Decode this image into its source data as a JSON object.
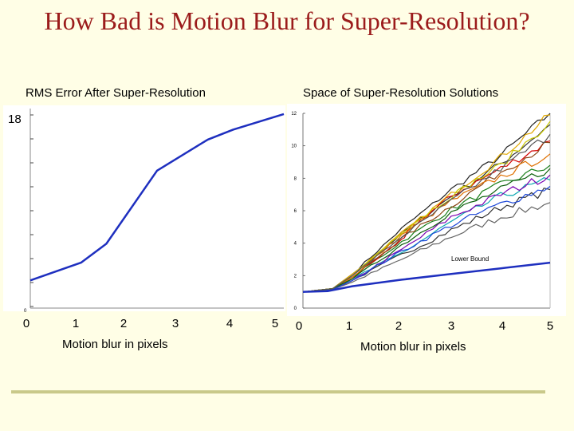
{
  "slide": {
    "title": "How Bad is Motion Blur for Super-Resolution?"
  },
  "chart_data": [
    {
      "type": "line",
      "title": "RMS Error After Super-Resolution",
      "xlabel": "Motion blur in pixels",
      "ylabel": "",
      "xlim": [
        0,
        5
      ],
      "ylim": [
        0,
        18
      ],
      "x_ticks": [
        "0",
        "1",
        "2",
        "3",
        "4",
        "5"
      ],
      "y_tick_label": "18",
      "y_small_tick_label": "0",
      "series": [
        {
          "color": "#1e2fbf",
          "x": [
            0,
            1,
            1.5,
            2.5,
            3.5,
            4,
            5
          ],
          "y": [
            2.5,
            4.1,
            5.8,
            12.4,
            15.2,
            16.1,
            17.5
          ]
        }
      ],
      "grid": false
    },
    {
      "type": "line",
      "title": "Space of Super-Resolution Solutions",
      "xlabel": "Motion blur in pixels",
      "ylabel": "",
      "xlim": [
        0,
        5
      ],
      "ylim": [
        0,
        12
      ],
      "x_ticks": [
        "0",
        "1",
        "2",
        "3",
        "4",
        "5"
      ],
      "y_ticks": [
        "0",
        "2",
        "4",
        "6",
        "8",
        "10",
        "12"
      ],
      "annotation": "Lower Bound",
      "lower_bound": {
        "color": "#1e2fbf",
        "x": [
          0,
          0.5,
          1,
          2,
          3,
          4,
          5
        ],
        "y": [
          1,
          1.05,
          1.35,
          1.75,
          2.1,
          2.45,
          2.8
        ]
      },
      "solution_colors": [
        "#222222",
        "#333333",
        "#666666",
        "#1a7f1a",
        "#d40000",
        "#e0a800",
        "#8b4513",
        "#0aa6b0",
        "#7a00b0",
        "#1d48d8",
        "#e07000",
        "#0b5e0b",
        "#c8c800",
        "#555555"
      ],
      "solution_curves": [
        {
          "color": "#222222",
          "x": [
            0,
            0.6,
            1,
            2,
            3,
            4,
            5
          ],
          "y": [
            1,
            1.2,
            2.1,
            4.9,
            7.3,
            9.4,
            12.0
          ]
        },
        {
          "color": "#333333",
          "x": [
            0,
            0.6,
            1,
            2,
            3,
            4,
            5
          ],
          "y": [
            1,
            1.2,
            2.0,
            4.6,
            6.9,
            8.9,
            11.3
          ]
        },
        {
          "color": "#666666",
          "x": [
            0,
            0.6,
            1,
            2,
            3,
            4,
            5
          ],
          "y": [
            1,
            1.15,
            1.6,
            3.0,
            4.4,
            5.6,
            6.5
          ]
        },
        {
          "color": "#333333",
          "x": [
            0,
            0.6,
            1,
            2,
            3,
            4,
            5
          ],
          "y": [
            1,
            1.15,
            1.7,
            3.3,
            4.8,
            6.2,
            7.3
          ]
        },
        {
          "color": "#1a7f1a",
          "x": [
            0,
            0.6,
            1,
            2,
            3,
            4,
            5
          ],
          "y": [
            1,
            1.2,
            1.9,
            4.1,
            6.1,
            7.6,
            8.8
          ]
        },
        {
          "color": "#d40000",
          "x": [
            0,
            0.6,
            1,
            2,
            2.2,
            3,
            4,
            5
          ],
          "y": [
            1,
            1.2,
            1.9,
            4.2,
            5.0,
            6.9,
            8.6,
            10.3
          ]
        },
        {
          "color": "#e0a800",
          "x": [
            0,
            0.6,
            1,
            2,
            3,
            4,
            5
          ],
          "y": [
            1,
            1.2,
            2.1,
            4.6,
            7.0,
            9.3,
            11.9
          ]
        },
        {
          "color": "#8b4513",
          "x": [
            0,
            0.6,
            1,
            2,
            3,
            4,
            5
          ],
          "y": [
            1,
            1.2,
            1.9,
            4.3,
            6.3,
            8.4,
            10.2
          ]
        },
        {
          "color": "#0aa6b0",
          "x": [
            0,
            0.6,
            1,
            2,
            3,
            4,
            5
          ],
          "y": [
            1,
            1.15,
            1.8,
            3.4,
            5.3,
            6.9,
            7.9
          ]
        },
        {
          "color": "#7a00b0",
          "x": [
            0,
            0.6,
            1,
            2,
            3,
            4,
            5
          ],
          "y": [
            1,
            1.15,
            1.7,
            3.6,
            5.6,
            7.0,
            8.2
          ]
        },
        {
          "color": "#1d48d8",
          "x": [
            0,
            0.6,
            1,
            2,
            3,
            4,
            5
          ],
          "y": [
            1,
            1.15,
            1.7,
            3.5,
            5.1,
            6.4,
            7.5
          ]
        },
        {
          "color": "#e07000",
          "x": [
            0,
            0.6,
            1,
            2,
            3,
            4,
            5
          ],
          "y": [
            1,
            1.2,
            1.9,
            4.5,
            6.6,
            8.1,
            9.5
          ]
        },
        {
          "color": "#0b5e0b",
          "x": [
            0,
            0.6,
            1,
            2,
            3,
            4,
            5
          ],
          "y": [
            1,
            1.2,
            1.8,
            3.9,
            5.9,
            7.3,
            8.6
          ]
        },
        {
          "color": "#c8c800",
          "x": [
            0,
            0.6,
            1,
            2,
            3,
            4,
            5
          ],
          "y": [
            1,
            1.2,
            2.0,
            4.7,
            6.9,
            8.8,
            11.5
          ]
        },
        {
          "color": "#555555",
          "x": [
            0,
            0.6,
            1,
            2,
            3,
            4,
            5
          ],
          "y": [
            1,
            1.2,
            2.0,
            4.4,
            6.6,
            8.6,
            10.7
          ]
        }
      ],
      "grid": false
    }
  ]
}
